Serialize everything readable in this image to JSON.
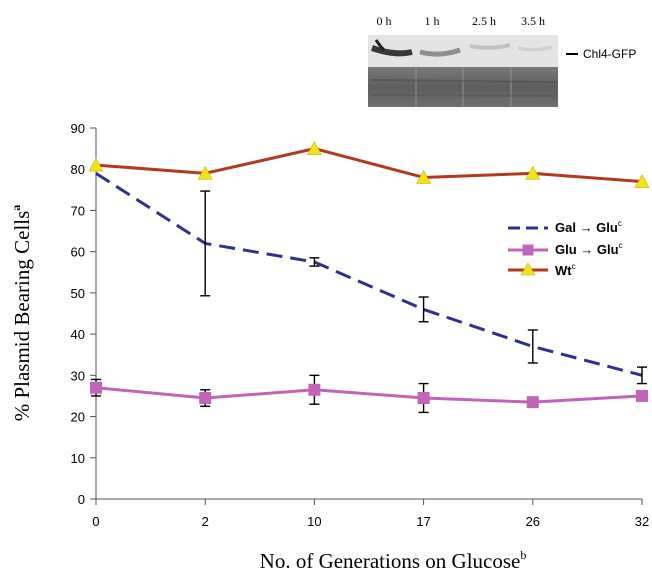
{
  "chart_data": {
    "type": "line",
    "ylabel": "% Plasmid Bearing Cells",
    "ylabel_sup": "a",
    "xlabel": "No. of Generations on Glucose",
    "xlabel_sup": "b",
    "categories": [
      "0",
      "2",
      "10",
      "17",
      "26",
      "32"
    ],
    "ylim": [
      0,
      90
    ],
    "yticks": [
      "0",
      "10",
      "20",
      "30",
      "40",
      "50",
      "60",
      "70",
      "80",
      "90"
    ],
    "grid": false,
    "legend_position": "right",
    "series": [
      {
        "name": "Gal → Glu",
        "name_sup": "c",
        "color": "#2e3192",
        "style": "dashed",
        "marker": "none",
        "values": [
          79,
          62,
          57.5,
          46,
          37,
          30
        ],
        "errors": [
          null,
          12.7,
          1,
          3,
          4,
          2
        ]
      },
      {
        "name": "Glu → Glu",
        "name_sup": "c",
        "color": "#c464b8",
        "style": "solid",
        "marker": "square",
        "values": [
          27,
          24.5,
          26.5,
          24.5,
          23.5,
          25
        ],
        "errors": [
          2,
          2,
          3.5,
          3.5,
          null,
          null
        ]
      },
      {
        "name": "Wt",
        "name_sup": "c",
        "color": "#b5391f",
        "style": "solid",
        "marker": "triangle",
        "marker_color": "#f2e21b",
        "values": [
          81,
          79,
          85,
          78,
          79,
          77
        ],
        "errors": [
          null,
          null,
          null,
          null,
          null,
          null
        ]
      }
    ]
  },
  "blot": {
    "time_labels": [
      "0 h",
      "1 h",
      "2.5 h",
      "3.5 h"
    ],
    "band_label": "Chl4-GFP"
  }
}
